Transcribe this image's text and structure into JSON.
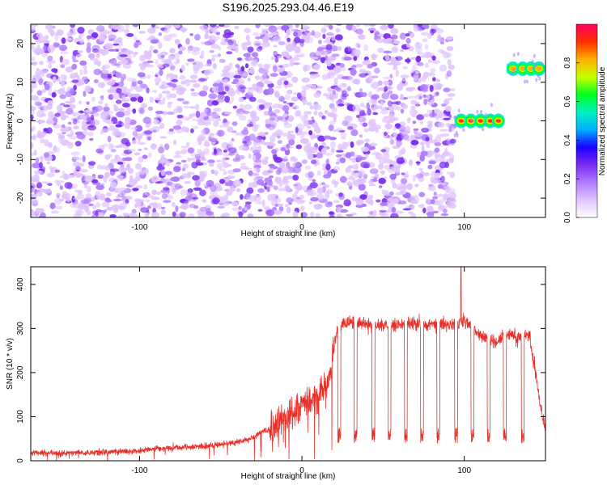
{
  "title": "S196.2025.293.04.46.E19",
  "chart_data": [
    {
      "type": "heatmap",
      "xlabel": "Height of straight line (km)",
      "ylabel": "Frequency (Hz)",
      "xlim": [
        -167,
        150
      ],
      "ylim": [
        -25,
        25
      ],
      "xticks": [
        -100,
        0,
        100
      ],
      "yticks": [
        -20,
        -10,
        0,
        10,
        20
      ],
      "colorbar": {
        "label": "Normalized spectral amplitude",
        "range": [
          0,
          1
        ],
        "ticks": [
          0.0,
          0.2,
          0.4,
          0.6,
          0.8
        ],
        "colors": [
          "#ffffff",
          "#e0c4ff",
          "#b07cff",
          "#7a2cf0",
          "#1a00ff",
          "#00b0ff",
          "#00f0c0",
          "#00ff20",
          "#c8ff00",
          "#ffb000",
          "#ff3000",
          "#ff0060"
        ]
      },
      "noise_region": {
        "x": [
          -167,
          93
        ],
        "frequency": [
          -25,
          25
        ],
        "level": [
          0.05,
          0.3
        ]
      },
      "tones": [
        {
          "x": [
            94,
            123
          ],
          "frequency": 0,
          "peak_level": 0.9,
          "peaks_x": [
            98,
            104,
            110,
            116,
            121
          ]
        },
        {
          "x": [
            126,
            148
          ],
          "frequency": 13.5,
          "peak_level": 0.85,
          "peaks_x": [
            130,
            136,
            141,
            146
          ]
        }
      ]
    },
    {
      "type": "line",
      "xlabel": "Height of straight line (km)",
      "ylabel": "SNR (10 * v/v)",
      "xlim": [
        -167,
        150
      ],
      "ylim": [
        0,
        440
      ],
      "xticks": [
        -100,
        0,
        100
      ],
      "yticks": [
        0,
        100,
        200,
        300,
        400
      ],
      "color": "#e8302a",
      "series": [
        {
          "x": [
            -167,
            -140,
            -120,
            -100,
            -90,
            -80,
            -60,
            -50,
            -40,
            -30,
            -25,
            -20,
            -15,
            -10,
            -5,
            0,
            5,
            10,
            15,
            18,
            20,
            22,
            25,
            30,
            40,
            50,
            60,
            70,
            80,
            90,
            95,
            100,
            105,
            110,
            120,
            125,
            130,
            135,
            140,
            143,
            146,
            148,
            150
          ],
          "values": [
            18,
            18,
            20,
            22,
            28,
            30,
            32,
            38,
            42,
            52,
            65,
            70,
            85,
            100,
            110,
            125,
            135,
            145,
            170,
            210,
            270,
            300,
            310,
            315,
            310,
            305,
            308,
            312,
            310,
            305,
            315,
            318,
            300,
            285,
            265,
            290,
            285,
            275,
            290,
            220,
            150,
            100,
            70
          ]
        }
      ],
      "dips_x": [
        23,
        33,
        44,
        54,
        64,
        74,
        84,
        95,
        105,
        115,
        125,
        136
      ],
      "spike": {
        "x": 98,
        "value": 440
      }
    }
  ]
}
